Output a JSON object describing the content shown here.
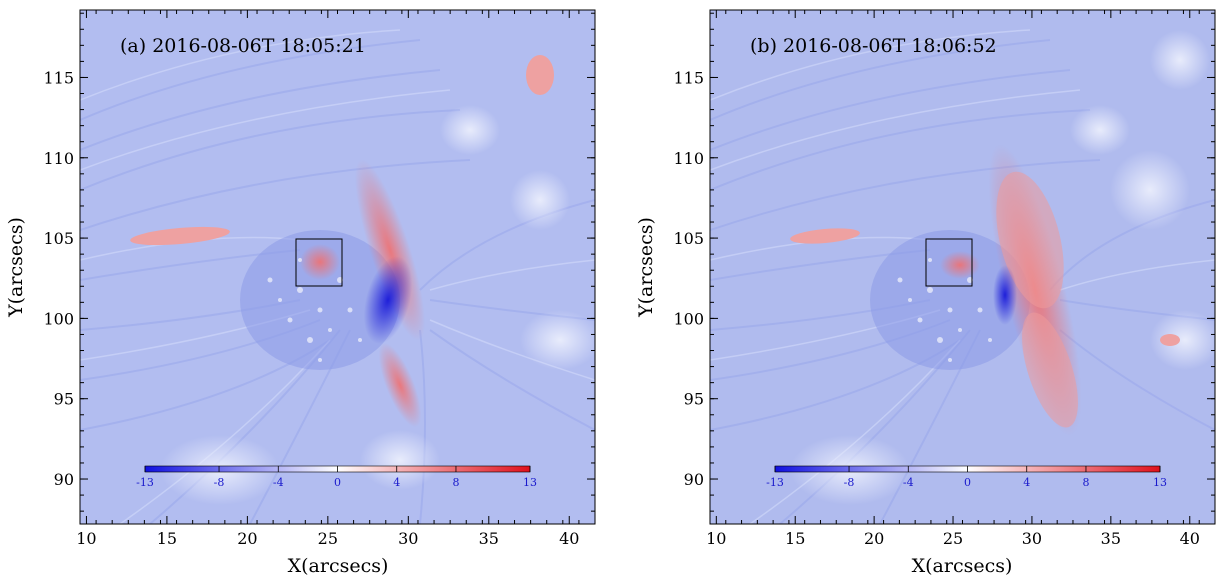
{
  "figure": {
    "panels": [
      {
        "id": "a",
        "title": "(a) 2016-08-06T  18:05:21",
        "xlabel": "X(arcsecs)",
        "ylabel": "Y(arcsecs)",
        "x_ticks": [
          "10",
          "15",
          "20",
          "25",
          "30",
          "35",
          "40"
        ],
        "y_ticks": [
          "90",
          "95",
          "100",
          "105",
          "110",
          "115"
        ],
        "colorbar_ticks": [
          "-13",
          "-8",
          "-4",
          "0",
          "4",
          "8",
          "13"
        ],
        "box": {
          "x_range": [
            23,
            25.8
          ],
          "y_range": [
            102,
            105
          ]
        }
      },
      {
        "id": "b",
        "title": "(b) 2016-08-06T  18:06:52",
        "xlabel": "X(arcsecs)",
        "ylabel": "Y(arcsecs)",
        "x_ticks": [
          "10",
          "15",
          "20",
          "25",
          "30",
          "35",
          "40"
        ],
        "y_ticks": [
          "90",
          "95",
          "100",
          "105",
          "110",
          "115"
        ],
        "colorbar_ticks": [
          "-13",
          "-8",
          "-4",
          "0",
          "4",
          "8",
          "13"
        ],
        "box": {
          "x_range": [
            23,
            25.8
          ],
          "y_range": [
            102,
            105
          ]
        }
      }
    ],
    "colors": {
      "background_field": "#b4bff0",
      "negative": "#1a1ae6",
      "zero": "#ffffff",
      "positive": "#e6141e",
      "axes": "#000000"
    }
  }
}
